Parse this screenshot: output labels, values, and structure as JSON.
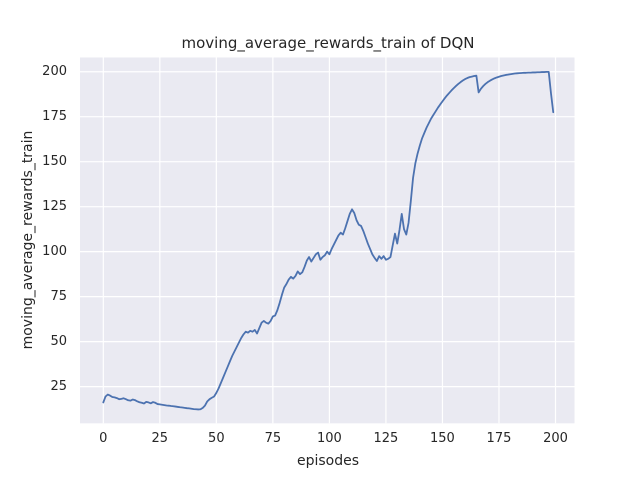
{
  "chart_data": {
    "type": "line",
    "title": "moving_average_rewards_train of DQN",
    "xlabel": "episodes",
    "ylabel": "moving_average_rewards_train",
    "x_ticks": [
      0,
      25,
      50,
      75,
      100,
      125,
      150,
      175,
      200
    ],
    "y_ticks": [
      25,
      50,
      75,
      100,
      125,
      150,
      175,
      200
    ],
    "xlim": [
      -10.3,
      208.4
    ],
    "ylim": [
      4.6,
      207.9
    ],
    "grid": true,
    "legend_position": "none",
    "style": "seaborn-darkgrid",
    "figure_bg_color": "#FFFFFF",
    "plot_bg_color": "#EAEAF2",
    "grid_color": "#FFFFFF",
    "line_color": "#4C72B0",
    "text_color": "#262626",
    "series": [
      {
        "name": "moving_average_rewards_train",
        "x_start": 0,
        "x_step": 1,
        "values": [
          16.2,
          19.5,
          20.6,
          20.0,
          19.2,
          19.0,
          18.6,
          18.0,
          18.2,
          18.5,
          18.0,
          17.4,
          17.2,
          17.8,
          17.5,
          16.8,
          16.3,
          16.0,
          15.6,
          16.5,
          16.2,
          15.7,
          16.4,
          16.0,
          15.3,
          15.1,
          14.9,
          14.7,
          14.5,
          14.4,
          14.2,
          14.1,
          13.9,
          13.7,
          13.5,
          13.4,
          13.2,
          13.0,
          12.9,
          12.7,
          12.5,
          12.4,
          12.3,
          12.4,
          13.2,
          14.5,
          16.8,
          18.0,
          18.8,
          19.5,
          21.5,
          24.0,
          27.0,
          30.0,
          33.0,
          36.0,
          39.0,
          42.0,
          44.5,
          47.0,
          49.5,
          52.0,
          54.0,
          55.5,
          55.0,
          56.0,
          55.5,
          56.5,
          54.5,
          57.5,
          60.5,
          61.5,
          60.5,
          60.0,
          61.5,
          64.0,
          64.5,
          67.5,
          71.5,
          76.0,
          80.0,
          82.0,
          84.5,
          86.0,
          85.0,
          86.5,
          89.0,
          87.5,
          88.5,
          91.5,
          95.0,
          97.0,
          94.5,
          96.5,
          98.5,
          99.5,
          95.5,
          97.0,
          98.0,
          100.0,
          98.5,
          101.5,
          104.0,
          106.5,
          109.0,
          110.5,
          109.5,
          113.0,
          117.0,
          121.0,
          123.5,
          121.5,
          117.5,
          115.0,
          114.3,
          111.5,
          108.0,
          104.5,
          101.5,
          98.5,
          96.5,
          94.8,
          97.5,
          96.0,
          97.5,
          95.5,
          96.0,
          97.0,
          103.5,
          110.0,
          104.5,
          112.0,
          121.0,
          112.5,
          109.5,
          116.0,
          128.0,
          141.0,
          149.0,
          154.5,
          159.0,
          163.0,
          166.0,
          169.0,
          171.5,
          174.0,
          176.0,
          178.0,
          180.0,
          181.8,
          183.5,
          185.2,
          186.8,
          188.2,
          189.6,
          190.9,
          192.1,
          193.2,
          194.2,
          195.1,
          195.9,
          196.5,
          197.0,
          197.3,
          197.6,
          197.8,
          188.5,
          190.5,
          192.0,
          193.2,
          194.2,
          195.0,
          195.7,
          196.3,
          196.8,
          197.2,
          197.6,
          197.9,
          198.2,
          198.4,
          198.6,
          198.8,
          199.0,
          199.1,
          199.2,
          199.3,
          199.4,
          199.4,
          199.5,
          199.5,
          199.6,
          199.6,
          199.7,
          199.7,
          199.8,
          199.8,
          199.9,
          199.9,
          188.0,
          177.5
        ]
      }
    ]
  }
}
